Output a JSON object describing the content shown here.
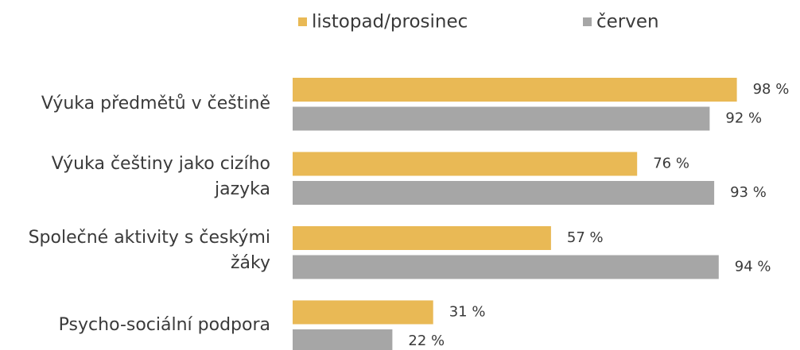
{
  "chart_data": {
    "type": "hbar",
    "categories": [
      "Výuka předmětů v češtině",
      "Výuka češtiny jako cizího jazyka",
      "Společné aktivity s českými žáky",
      "Psycho-sociální podpora"
    ],
    "series": [
      {
        "name": "listopad/prosinec",
        "color": "#e9b955",
        "values": [
          98,
          76,
          57,
          31
        ],
        "value_labels": [
          "98 %",
          "76 %",
          "57 %",
          "31 %"
        ]
      },
      {
        "name": "červen",
        "color": "#a6a6a6",
        "values": [
          92,
          93,
          94,
          22
        ],
        "value_labels": [
          "92 %",
          "93 %",
          "94 %",
          "22 %"
        ]
      }
    ],
    "xlim": [
      0,
      100
    ],
    "legend": "top"
  }
}
